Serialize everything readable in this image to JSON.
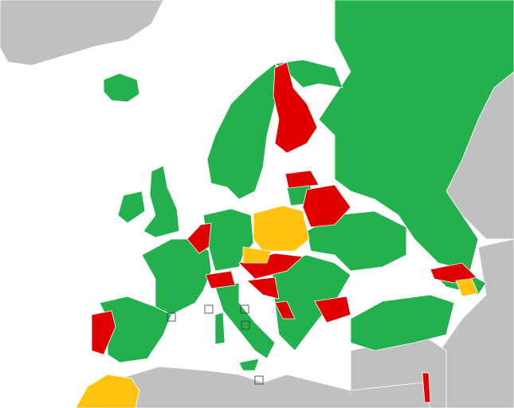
{
  "map": {
    "colors": {
      "sea": "#ffffff",
      "green": "#23b14d",
      "red": "#e00000",
      "yellow": "#ffc20e",
      "non_europe": "#c0c0c0",
      "border": "#ffffff"
    }
  }
}
